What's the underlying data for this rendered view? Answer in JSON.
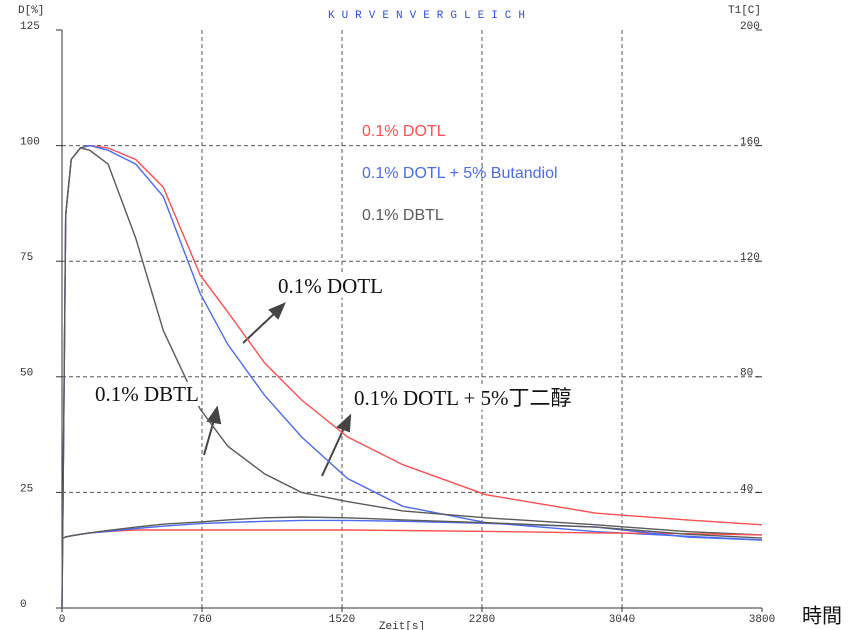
{
  "chart_data": {
    "type": "line",
    "title": "KURVENVERGLEICH",
    "y_label": "D[%]",
    "y2_label": "T1[C]",
    "x_label": "Zeit[s]",
    "x_extra_label": "時間",
    "x": [
      0,
      20,
      50,
      100,
      150,
      250,
      400,
      550,
      750,
      900,
      1100,
      1300,
      1550,
      1850,
      2300,
      2900,
      3400,
      3800
    ],
    "xlim": [
      0,
      3800
    ],
    "xticks": [
      0,
      760,
      1520,
      2280,
      3040,
      3800
    ],
    "ylim": [
      0,
      125
    ],
    "yticks": [
      0,
      25,
      50,
      75,
      100,
      125
    ],
    "y2lim": [
      0,
      200
    ],
    "y2ticks": [
      40,
      80,
      120,
      160,
      200
    ],
    "grid": true,
    "series": [
      {
        "name": "0.1% DOTL",
        "color": "#ff4f4f",
        "values": [
          0,
          85,
          97,
          99.5,
          100,
          99.5,
          97,
          91,
          72,
          64,
          53,
          45,
          37,
          31,
          24.5,
          20.5,
          19,
          18
        ]
      },
      {
        "name": "0.1% DOTL + 5% Butandiol",
        "color": "#4b6bf0",
        "values": [
          0,
          85,
          97,
          99.5,
          100,
          99,
          96,
          89,
          68,
          57,
          46,
          37,
          28,
          22,
          18.5,
          16.5,
          15.5,
          14.7
        ]
      },
      {
        "name": "0.1% DBTL",
        "color": "#5a5a5a",
        "values": [
          0,
          85,
          97,
          99.5,
          99,
          96,
          80,
          60,
          43,
          35,
          29,
          25,
          23,
          21,
          19.5,
          18,
          16.5,
          15.8
        ]
      },
      {
        "color": "#ff4f4f",
        "axis": "y2",
        "values": [
          24,
          24.6,
          25,
          25.5,
          26,
          26.5,
          27,
          27,
          27,
          27,
          27,
          27,
          27,
          26.8,
          26.5,
          26,
          25.7,
          25.3
        ]
      },
      {
        "color": "#4b6bf0",
        "axis": "y2",
        "values": [
          24,
          24.6,
          25,
          25.5,
          26,
          26.5,
          27.5,
          28.3,
          29.2,
          29.6,
          30,
          30.3,
          30.3,
          30,
          29.3,
          28,
          24.5,
          23.5
        ]
      },
      {
        "color": "#5a5a5a",
        "axis": "y2",
        "values": [
          24,
          24.6,
          25,
          25.5,
          26,
          26.8,
          28,
          29,
          29.8,
          30.5,
          31.2,
          31.5,
          31.2,
          30.5,
          29.5,
          28,
          25.5,
          24.2
        ]
      }
    ],
    "annotations": [
      "0.1% DOTL",
      "0.1% DBTL",
      "0.1% DOTL + 5%丁二醇"
    ]
  }
}
